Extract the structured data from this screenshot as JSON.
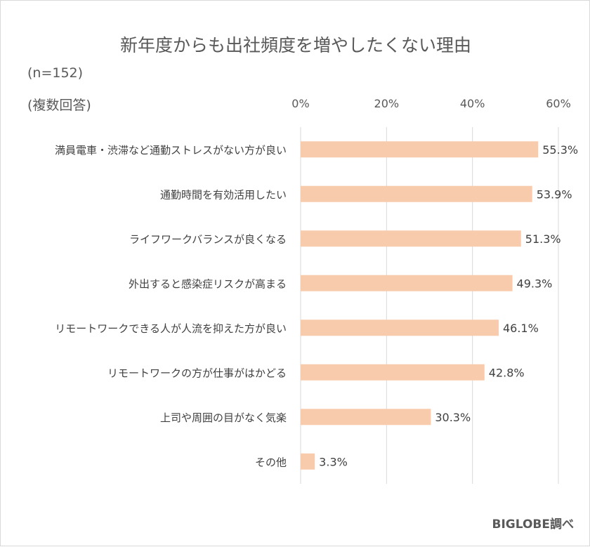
{
  "chart_data": {
    "type": "bar",
    "orientation": "horizontal",
    "title": "新年度からも出社頻度を増やしたくない理由",
    "sample_note": "(n=152)",
    "answer_note": "(複数回答)",
    "categories": [
      "満員電車・渋滞など通勤ストレスがない方が良い",
      "通勤時間を有効活用したい",
      "ライフワークバランスが良くなる",
      "外出すると感染症リスクが高まる",
      "リモートワークできる人が人流を抑えた方が良い",
      "リモートワークの方が仕事がはかどる",
      "上司や周囲の目がなく気楽",
      "その他"
    ],
    "values": [
      55.3,
      53.9,
      51.3,
      49.3,
      46.1,
      42.8,
      30.3,
      3.3
    ],
    "value_labels": [
      "55.3%",
      "53.9%",
      "51.3%",
      "49.3%",
      "46.1%",
      "42.8%",
      "30.3%",
      "3.3%"
    ],
    "xlim": [
      0,
      60
    ],
    "ticks": [
      0,
      20,
      40,
      60
    ],
    "tick_labels": [
      "0%",
      "20%",
      "40%",
      "60%"
    ],
    "axis_position": "top",
    "grid": true,
    "bar_color": "#f8cbad",
    "grid_color": "#d9d9d9",
    "credit": "BIGLOBE調べ"
  }
}
